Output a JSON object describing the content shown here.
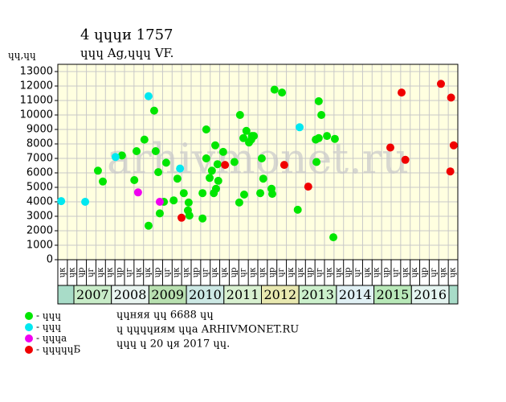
{
  "chart_data": {
    "type": "scatter",
    "title": "4 ɥɥɥи 1757",
    "subtitle": "ɥɥɥ Ag,ɥɥɥ VF.",
    "y_label": "ɥɥ,ɥɥ",
    "watermark": "arhivmonet.ru",
    "xlim": [
      2006.57,
      2017.24
    ],
    "ylim": [
      0,
      13000
    ],
    "yticks": [
      0,
      1000,
      2000,
      3000,
      4000,
      5000,
      6000,
      7000,
      8000,
      9000,
      10000,
      11000,
      12000,
      13000
    ],
    "grid": true,
    "quarter_labels": [
      "ɥк",
      "ɥк",
      "ɥр",
      "ɥг",
      "ɥк",
      "ɥк",
      "ɥр",
      "ɥг",
      "ɥк",
      "ɥк",
      "ɥр",
      "ɥг",
      "ɥк",
      "ɥк",
      "ɥр",
      "ɥг",
      "ɥк",
      "ɥк",
      "ɥр",
      "ɥг",
      "ɥк",
      "ɥк",
      "ɥр",
      "ɥг",
      "ɥк",
      "ɥк",
      "ɥр",
      "ɥг",
      "ɥк",
      "ɥк",
      "ɥр",
      "ɥг",
      "ɥк",
      "ɥк",
      "ɥр",
      "ɥг",
      "ɥк",
      "ɥк",
      "ɥр",
      "ɥг",
      "ɥк",
      "ɥк"
    ],
    "years": [
      "2007",
      "2008",
      "2009",
      "2010",
      "2011",
      "2012",
      "2013",
      "2014",
      "2015",
      "2016"
    ],
    "year_colors": [
      "#c8ecc8",
      "#e8f4f0",
      "#b8e0b0",
      "#cce8e4",
      "#d8f0d0",
      "#e8e8b0",
      "#ccf0cc",
      "#e0f0f4",
      "#b8e8b8",
      "#e4f4f0"
    ],
    "series": [
      {
        "name": "- ɥɥɥ",
        "color": "#00e600",
        "x": [
          2007.64,
          2007.77,
          2008.28,
          2008.61,
          2008.67,
          2008.88,
          2008.99,
          2009.14,
          2009.18,
          2009.25,
          2009.29,
          2009.4,
          2009.46,
          2009.66,
          2009.76,
          2009.93,
          2010.04,
          2010.06,
          2010.08,
          2010.43,
          2010.43,
          2010.53,
          2010.53,
          2010.62,
          2010.68,
          2010.73,
          2010.77,
          2010.79,
          2010.83,
          2010.85,
          2010.98,
          2011.28,
          2011.43,
          2011.41,
          2011.52,
          2011.54,
          2011.6,
          2011.67,
          2011.75,
          2011.73,
          2011.8,
          2011.97,
          2012.01,
          2012.05,
          2012.27,
          2012.29,
          2012.35,
          2012.55,
          2012.97,
          2013.45,
          2013.47,
          2013.53,
          2013.53,
          2013.6,
          2013.75,
          2013.92,
          2013.96
        ],
        "values": [
          6150,
          5400,
          7200,
          5500,
          7500,
          8300,
          2350,
          10300,
          7500,
          6050,
          3200,
          4000,
          6700,
          4100,
          5600,
          4600,
          3400,
          3950,
          3050,
          4600,
          2850,
          9000,
          7000,
          5650,
          6150,
          4600,
          7900,
          4900,
          6600,
          5450,
          7450,
          6750,
          10000,
          3950,
          8400,
          4500,
          8900,
          8100,
          8550,
          8300,
          8550,
          4600,
          7000,
          5600,
          4900,
          4550,
          11750,
          11550,
          3450,
          8300,
          6750,
          10950,
          8400,
          10000,
          8550,
          1550,
          8350
        ]
      },
      {
        "name": "- ɥɥɥ",
        "color": "#00e8f0",
        "x": [
          2006.66,
          2007.3,
          2008.11,
          2008.99,
          2009.83,
          2013.02
        ],
        "values": [
          4050,
          4000,
          7100,
          11300,
          6300,
          9150
        ]
      },
      {
        "name": "- ɥɥɥа",
        "color": "#f000f0",
        "x": [
          2008.71,
          2009.29
        ],
        "values": [
          4650,
          4000
        ]
      },
      {
        "name": "- ɥɥɥɥɥБ",
        "color": "#f00000",
        "x": [
          2009.87,
          2011.03,
          2012.61,
          2013.25,
          2015.44,
          2015.74,
          2015.84,
          2016.79,
          2017.06,
          2017.13,
          2017.04
        ],
        "values": [
          2900,
          6550,
          6550,
          5050,
          7750,
          11550,
          6900,
          12150,
          11200,
          7900,
          6100
        ]
      }
    ],
    "notes": [
      "ɥɥняя ɥɥ 6688 ɥɥ",
      "ɥ ɥɥɥɥиям ɥɥа ARHIVMONET.RU",
      "ɥɥɥ ɥ 20 ɥя 2017 ɥɥ."
    ]
  }
}
